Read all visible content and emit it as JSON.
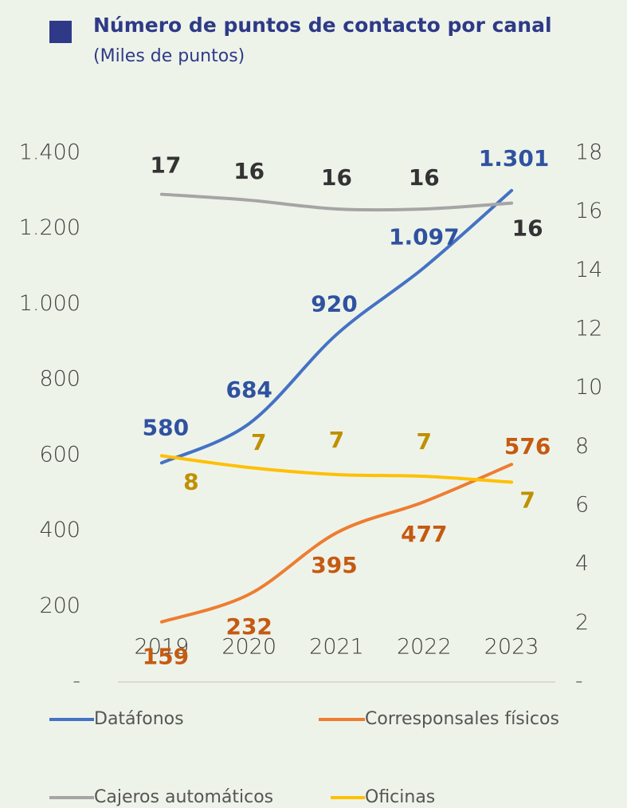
{
  "chart_data": {
    "type": "line",
    "title": "Número de puntos de contacto por canal",
    "subtitle": "(Miles de puntos)",
    "categories": [
      "2019",
      "2020",
      "2021",
      "2022",
      "2023"
    ],
    "ylim": [
      0,
      1400
    ],
    "yticks": [
      {
        "value": 0,
        "label": "-"
      },
      200,
      400,
      600,
      800,
      {
        "value": 1000,
        "label": "1.000"
      },
      {
        "value": 1200,
        "label": "1.200"
      },
      {
        "value": 1400,
        "label": "1.400"
      }
    ],
    "y2lim": [
      0,
      18
    ],
    "y2ticks": [
      {
        "value": 0,
        "label": "-"
      },
      2,
      4,
      6,
      8,
      10,
      12,
      14,
      16,
      18
    ],
    "series": [
      {
        "name": "Datáfonos",
        "color": "#4472c4",
        "values": [
          580,
          684,
          920,
          1097,
          1301
        ],
        "value_labels": [
          "580",
          "684",
          "920",
          "1.097",
          "1.301"
        ]
      },
      {
        "name": "Corresponsales físicos",
        "color": "#ed7d31",
        "values": [
          159,
          232,
          395,
          477,
          576
        ]
      },
      {
        "name": "Cajeros automáticos",
        "color": "#a5a5a5",
        "axis": "y2",
        "values": [
          16.6,
          16.4,
          16.1,
          16.1,
          16.3
        ],
        "value_labels": [
          "17",
          "16",
          "16",
          "16",
          "16"
        ]
      },
      {
        "name": "Oficinas",
        "color": "#ffc000",
        "axis": "y2",
        "values": [
          7.7,
          7.3,
          7.06,
          7.0,
          6.8
        ],
        "value_labels": [
          "8",
          "7",
          "7",
          "7",
          "7"
        ]
      }
    ]
  }
}
